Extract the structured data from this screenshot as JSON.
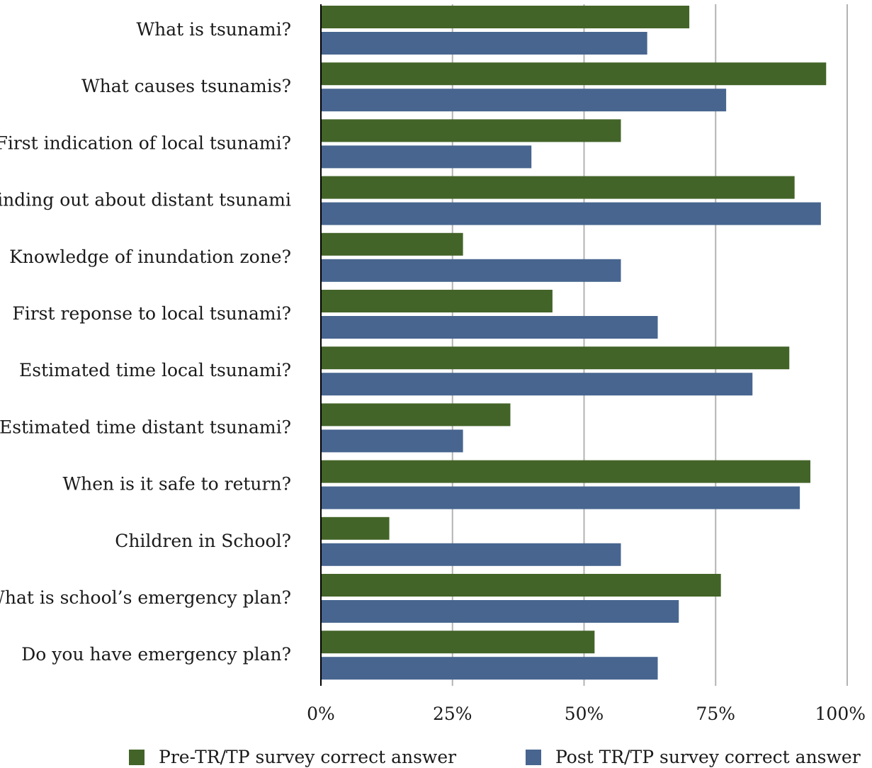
{
  "chart_data": {
    "type": "bar",
    "orientation": "horizontal",
    "categories": [
      "What is tsunami?",
      "What causes tsunamis?",
      "First indication of local tsunami?",
      "Finding out about distant tsunami",
      "Knowledge of inundation zone?",
      "First reponse to local tsunami?",
      "Estimated time local tsunami?",
      "Estimated time distant tsunami?",
      "When is it safe to return?",
      "Children in School?",
      "What is school’s emergency plan?",
      "Do you have emergency plan?"
    ],
    "series": [
      {
        "name": "Pre-TR/TP survey correct answer",
        "color": "#436428",
        "values": [
          70,
          96,
          57,
          90,
          27,
          44,
          89,
          36,
          93,
          13,
          76,
          52
        ]
      },
      {
        "name": "Post TR/TP survey correct answer",
        "color": "#47658f",
        "values": [
          62,
          77,
          40,
          95,
          57,
          64,
          82,
          27,
          91,
          57,
          68,
          64
        ]
      }
    ],
    "x_ticks": [
      "0%",
      "25%",
      "50%",
      "75%",
      "100%"
    ],
    "xlim": [
      0,
      100
    ],
    "grid": true,
    "legend_position": "bottom",
    "title": "",
    "xlabel": "",
    "ylabel": ""
  }
}
